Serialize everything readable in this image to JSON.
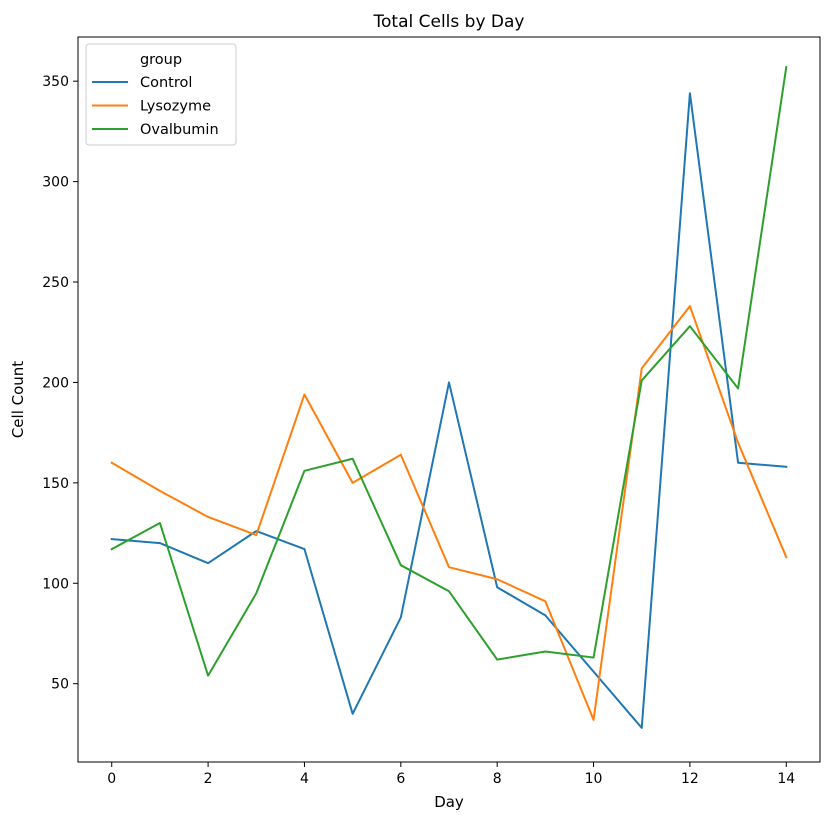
{
  "chart_data": {
    "type": "line",
    "title": "Total Cells by Day",
    "xlabel": "Day",
    "ylabel": "Cell Count",
    "xlim": [
      -0.7,
      14.7
    ],
    "ylim": [
      11,
      372
    ],
    "xticks": [
      0,
      2,
      4,
      6,
      8,
      10,
      12,
      14
    ],
    "yticks": [
      50,
      100,
      150,
      200,
      250,
      300,
      350
    ],
    "x": [
      0,
      1,
      2,
      3,
      4,
      5,
      6,
      7,
      8,
      9,
      10,
      11,
      12,
      13,
      14
    ],
    "grid": false,
    "legend": {
      "title": "group",
      "placement": "top-left"
    },
    "series": [
      {
        "name": "Control",
        "color": "#1f77b4",
        "values": [
          122,
          120,
          110,
          126,
          117,
          35,
          83,
          200,
          98,
          84,
          56,
          28,
          344,
          160,
          158
        ]
      },
      {
        "name": "Lysozyme",
        "color": "#ff7f0e",
        "values": [
          160,
          146,
          133,
          124,
          194,
          150,
          164,
          108,
          102,
          91,
          32,
          207,
          238,
          170,
          113
        ]
      },
      {
        "name": "Ovalbumin",
        "color": "#2ca02c",
        "values": [
          117,
          130,
          54,
          95,
          156,
          162,
          109,
          96,
          62,
          66,
          63,
          201,
          228,
          197,
          357
        ]
      }
    ]
  }
}
